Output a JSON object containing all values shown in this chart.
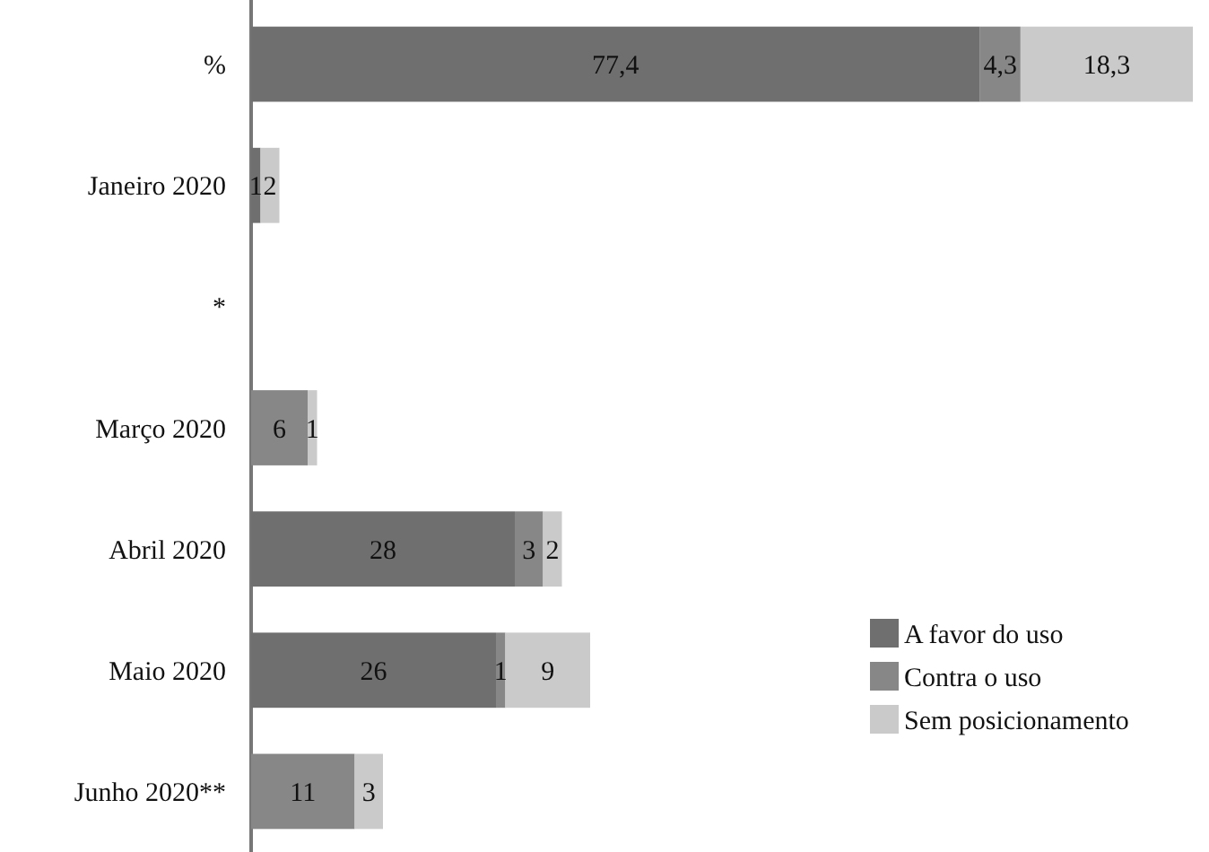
{
  "chart_data": {
    "type": "bar",
    "orientation": "horizontal",
    "stacked": true,
    "data_labels": true,
    "legend": "bottom right",
    "categories": [
      "%",
      "Janeiro 2020",
      "*",
      "Março 2020",
      "Abril 2020",
      "Maio 2020",
      "Junho 2020**"
    ],
    "series": [
      {
        "name": "A favor do uso",
        "color": "#6f6f6f",
        "values": [
          77.4,
          1,
          null,
          null,
          28,
          26,
          null
        ],
        "value_labels": [
          "77,4",
          "1",
          null,
          null,
          "28",
          "26",
          null
        ]
      },
      {
        "name": "Contra o uso",
        "color": "#878787",
        "values": [
          4.3,
          null,
          null,
          6,
          3,
          1,
          11
        ],
        "value_labels": [
          "4,3",
          null,
          null,
          "6",
          "3",
          "1",
          "11"
        ]
      },
      {
        "name": "Sem posicionamento",
        "color": "#cacaca",
        "values": [
          18.3,
          2,
          null,
          1,
          2,
          9,
          3
        ],
        "value_labels": [
          "18,3",
          "2",
          null,
          "1",
          "2",
          "9",
          "3"
        ]
      }
    ]
  }
}
